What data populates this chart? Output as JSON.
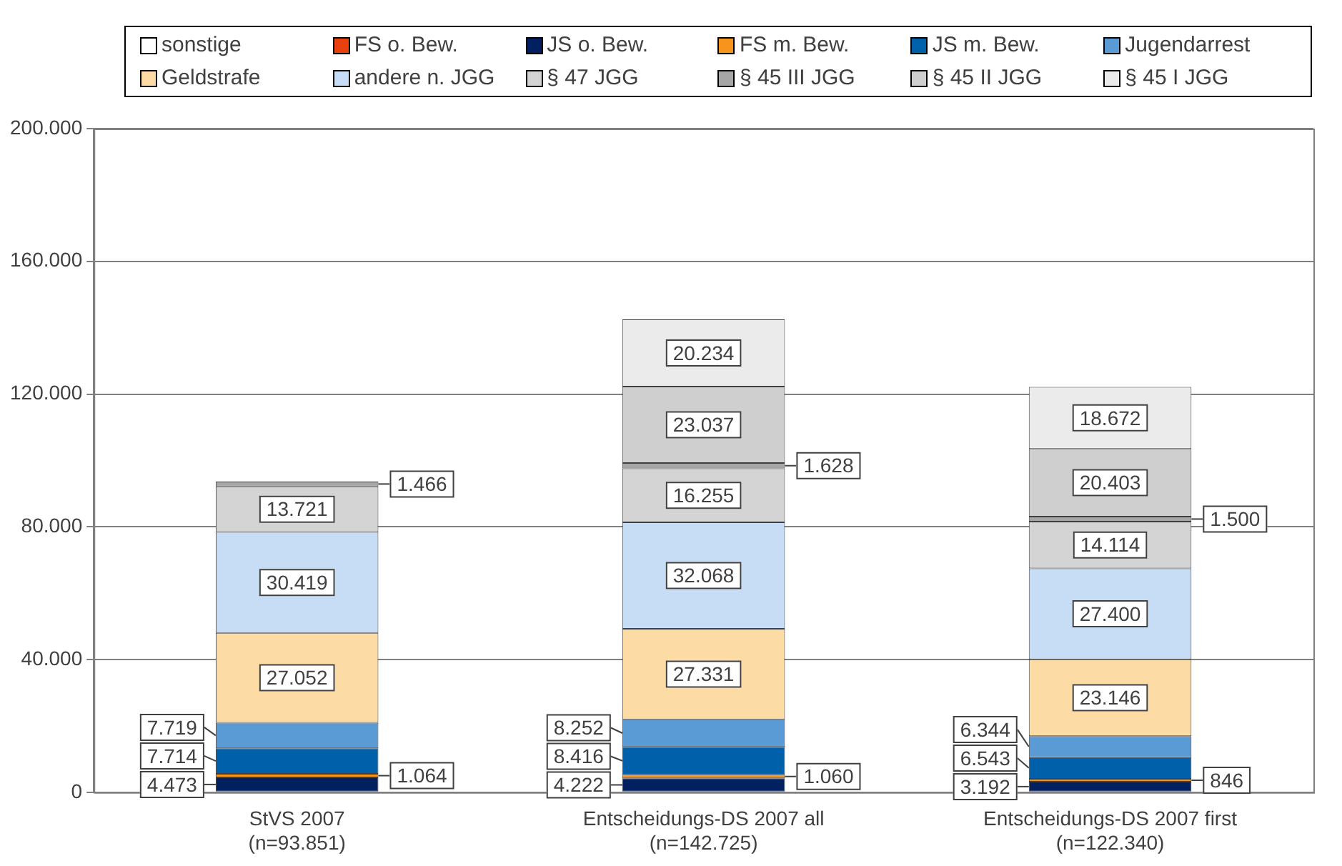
{
  "chart_data": {
    "type": "bar",
    "stacked": true,
    "categories": [
      "StVS 2007\n(n=93.851)",
      "Entscheidungs-DS 2007 all\n(n=142.725)",
      "Entscheidungs-DS 2007 first\n(n=122.340)"
    ],
    "series": [
      {
        "name": "sonstige",
        "color": "#ffffff",
        "values": [
          null,
          null,
          null
        ],
        "value_labels": [
          null,
          null,
          null
        ]
      },
      {
        "name": "FS o. Bew.",
        "color": "#e8410f",
        "values": [
          null,
          null,
          null
        ],
        "value_labels": [
          null,
          null,
          null
        ]
      },
      {
        "name": "JS o. Bew.",
        "color": "#002060",
        "values": [
          4473,
          4222,
          3192
        ],
        "value_labels": [
          "4.473",
          "4.222",
          "3.192"
        ]
      },
      {
        "name": "FS m. Bew.",
        "color": "#f7941d",
        "values": [
          1064,
          1060,
          846
        ],
        "value_labels": [
          "1.064",
          "1.060",
          "846"
        ]
      },
      {
        "name": "JS m. Bew.",
        "color": "#0060aa",
        "values": [
          7714,
          8416,
          6543
        ],
        "value_labels": [
          "7.714",
          "8.416",
          "6.543"
        ]
      },
      {
        "name": "Jugendarrest",
        "color": "#5b9bd5",
        "values": [
          7719,
          8252,
          6344
        ],
        "value_labels": [
          "7.719",
          "8.252",
          "6.344"
        ]
      },
      {
        "name": "Geldstrafe",
        "color": "#fcdba4",
        "values": [
          27052,
          27331,
          23146
        ],
        "value_labels": [
          "27.052",
          "27.331",
          "23.146"
        ]
      },
      {
        "name": "andere n. JGG",
        "color": "#c6ddf5",
        "values": [
          30419,
          32068,
          27400
        ],
        "value_labels": [
          "30.419",
          "32.068",
          "27.400"
        ]
      },
      {
        "name": "§ 47 JGG",
        "color": "#d4d4d4",
        "values": [
          13721,
          16255,
          14114
        ],
        "value_labels": [
          "13.721",
          "16.255",
          "14.114"
        ]
      },
      {
        "name": "§ 45 III JGG",
        "color": "#a6a6a6",
        "values": [
          1466,
          1628,
          1500
        ],
        "value_labels": [
          "1.466",
          "1.628",
          "1.500"
        ]
      },
      {
        "name": "§ 45 II JGG",
        "color": "#cfcfcf",
        "values": [
          null,
          23037,
          20403
        ],
        "value_labels": [
          null,
          "23.037",
          "20.403"
        ]
      },
      {
        "name": "§ 45 I JGG",
        "color": "#ebebeb",
        "values": [
          null,
          20234,
          18672
        ],
        "value_labels": [
          null,
          "20.234",
          "18.672"
        ]
      }
    ],
    "ylim": [
      0,
      200000
    ],
    "yticks": [
      {
        "value": 0,
        "label": "0"
      },
      {
        "value": 40000,
        "label": "40.000"
      },
      {
        "value": 80000,
        "label": "80.000"
      },
      {
        "value": 120000,
        "label": "120.000"
      },
      {
        "value": 160000,
        "label": "160.000"
      },
      {
        "value": 200000,
        "label": "200.000"
      }
    ],
    "grid": "y",
    "legend": "top"
  }
}
